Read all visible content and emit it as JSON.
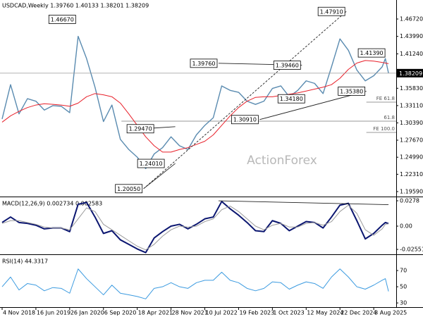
{
  "chart_data": {
    "type": "line",
    "x": [
      "2018-11-04",
      "2018-12-30",
      "2019-02-24",
      "2019-04-21",
      "2019-06-16",
      "2019-08-11",
      "2019-10-06",
      "2019-12-01",
      "2020-01-26",
      "2020-03-22",
      "2020-05-17",
      "2020-07-12",
      "2020-09-06",
      "2020-11-01",
      "2020-12-27",
      "2021-02-21",
      "2021-04-18",
      "2021-06-13",
      "2021-08-08",
      "2021-10-03",
      "2021-11-28",
      "2022-01-23",
      "2022-03-20",
      "2022-05-15",
      "2022-07-10",
      "2022-09-04",
      "2022-10-30",
      "2022-12-25",
      "2023-02-19",
      "2023-04-16",
      "2023-06-11",
      "2023-08-06",
      "2023-10-01",
      "2023-11-26",
      "2024-01-21",
      "2024-03-17",
      "2024-05-12",
      "2024-07-07",
      "2024-09-01",
      "2024-10-27",
      "2024-12-22",
      "2025-02-16",
      "2025-04-13",
      "2025-06-08",
      "2025-08-03",
      "2025-09-28",
      "2025-10-19",
      "2025-11-09"
    ],
    "xlim": [
      "2018-10-21",
      "2025-12-30"
    ],
    "xticks": [
      {
        "value": "2018-11-04",
        "label": "4 Nov 2018"
      },
      {
        "value": "2019-06-16",
        "label": "16 Jun 2019"
      },
      {
        "value": "2020-01-26",
        "label": "26 Jan 2020"
      },
      {
        "value": "2020-09-06",
        "label": "6 Sep 2020"
      },
      {
        "value": "2021-04-18",
        "label": "18 Apr 2021"
      },
      {
        "value": "2021-11-28",
        "label": "28 Nov 2021"
      },
      {
        "value": "2022-07-10",
        "label": "10 Jul 2022"
      },
      {
        "value": "2023-02-19",
        "label": "19 Feb 2023"
      },
      {
        "value": "2023-10-01",
        "label": "1 Oct 2023"
      },
      {
        "value": "2024-05-12",
        "label": "12 May 2024"
      },
      {
        "value": "2024-12-22",
        "label": "22 Dec 2024"
      },
      {
        "value": "2025-08-03",
        "label": "3 Aug 2025"
      }
    ],
    "watermark": "ActionForex",
    "panels": [
      {
        "type": "line",
        "header": "USDCAD,Weekly  1.39760 1.40133 1.38201 1.38209",
        "ylim": [
          1.1892,
          1.4971
        ],
        "yticks": [
          {
            "value": 1.4672,
            "label": "1.46720"
          },
          {
            "value": 1.4399,
            "label": "1.43990"
          },
          {
            "value": 1.4124,
            "label": "1.41240"
          },
          {
            "value": 1.3583,
            "label": "1.35830"
          },
          {
            "value": 1.3311,
            "label": "1.33110"
          },
          {
            "value": 1.3039,
            "label": "1.30390"
          },
          {
            "value": 1.2767,
            "label": "1.27670"
          },
          {
            "value": 1.2499,
            "label": "1.24990"
          },
          {
            "value": 1.2231,
            "label": "1.22310"
          },
          {
            "value": 1.1959,
            "label": "1.19590"
          }
        ],
        "series": [
          {
            "color": "#5a8bb0",
            "width": 1.4,
            "values": [
              1.31,
              1.364,
              1.318,
              1.342,
              1.338,
              1.324,
              1.331,
              1.33,
              1.32,
              1.44,
              1.405,
              1.36,
              1.306,
              1.332,
              1.278,
              1.262,
              1.25,
              1.232,
              1.255,
              1.265,
              1.282,
              1.268,
              1.262,
              1.285,
              1.3,
              1.312,
              1.362,
              1.355,
              1.352,
              1.338,
              1.333,
              1.338,
              1.358,
              1.362,
              1.345,
              1.355,
              1.37,
              1.366,
              1.35,
              1.392,
              1.436,
              1.418,
              1.387,
              1.37,
              1.378,
              1.392,
              1.405,
              1.38209
            ]
          },
          {
            "color": "#e8202a",
            "width": 1,
            "values": [
              1.305,
              1.315,
              1.322,
              1.328,
              1.332,
              1.334,
              1.333,
              1.332,
              1.33,
              1.335,
              1.345,
              1.35,
              1.348,
              1.345,
              1.335,
              1.318,
              1.3,
              1.282,
              1.268,
              1.258,
              1.258,
              1.262,
              1.265,
              1.27,
              1.275,
              1.285,
              1.3,
              1.315,
              1.328,
              1.338,
              1.344,
              1.345,
              1.345,
              1.347,
              1.349,
              1.351,
              1.354,
              1.357,
              1.36,
              1.364,
              1.374,
              1.388,
              1.398,
              1.402,
              1.401,
              1.399,
              1.398,
              1.397
            ]
          }
        ],
        "annotations": [
          {
            "label": "1.46670",
            "x": "2020-03-15",
            "value": 1.4667
          },
          {
            "label": "1.20050",
            "x": "2021-05-30",
            "value": 1.2005
          },
          {
            "label": "1.29470",
            "x": "2021-08-15",
            "value": 1.2947
          },
          {
            "label": "1.24010",
            "x": "2021-10-24",
            "value": 1.2401
          },
          {
            "label": "1.39760",
            "x": "2022-10-09",
            "value": 1.3976
          },
          {
            "label": "1.30910",
            "x": "2023-07-09",
            "value": 1.3091
          },
          {
            "label": "1.39460",
            "x": "2024-04-14",
            "value": 1.3946
          },
          {
            "label": "1.34180",
            "x": "2024-05-12",
            "value": 1.3418
          },
          {
            "label": "1.47910",
            "x": "2025-02-02",
            "value": 1.4791
          },
          {
            "label": "1.35380",
            "x": "2025-06-15",
            "value": 1.3538
          },
          {
            "label": "1.41390",
            "x": "2025-10-26",
            "value": 1.4139
          }
        ],
        "levels": [
          {
            "label": "FE 61.8",
            "x": "2025-06-15",
            "value": 1.3365
          },
          {
            "label": "61.8",
            "x": "2021-01-03",
            "value": 1.3066
          },
          {
            "label": "FE 100.0",
            "x": "2025-06-15",
            "value": 1.2889
          }
        ],
        "trendlines": [
          {
            "x": [
              "2021-05-30",
              "2025-02-02"
            ],
            "values": [
              1.2005,
              1.4791
            ],
            "dashed": true
          },
          {
            "x": [
              "2022-10-09",
              "2024-04-14"
            ],
            "values": [
              1.3976,
              1.3946
            ],
            "dashed": false
          },
          {
            "x": [
              "2023-07-09",
              "2025-06-15"
            ],
            "values": [
              1.3091,
              1.3538
            ],
            "dashed": false
          },
          {
            "x": [
              "2021-05-30",
              "2021-12-26"
            ],
            "values": [
              1.2005,
              1.2401
            ],
            "dashed": false
          },
          {
            "x": [
              "2021-05-30",
              "2021-12-26"
            ],
            "values": [
              1.2947,
              1.298
            ],
            "dashed": false
          }
        ]
      },
      {
        "type": "line",
        "header": "MACD(12,26,9) 0.002734 0.002583",
        "ylim": [
          -0.0301,
          0.0309
        ],
        "yticks": [
          0.0278,
          {
            "value": 0,
            "label": "0.00"
          },
          -0.025511
        ],
        "series": [
          {
            "color": "#0b1670",
            "width": 2,
            "values": [
              0.004,
              0.01,
              0.004,
              0.003,
              0.001,
              -0.003,
              -0.002,
              -0.002,
              -0.006,
              0.024,
              0.026,
              0.01,
              -0.008,
              -0.005,
              -0.015,
              -0.02,
              -0.025,
              -0.029,
              -0.013,
              -0.006,
              0.0,
              0.002,
              -0.003,
              0.002,
              0.008,
              0.01,
              0.027,
              0.019,
              0.012,
              0.004,
              -0.005,
              -0.006,
              0.006,
              0.003,
              -0.005,
              0.0,
              0.005,
              0.004,
              -0.002,
              0.01,
              0.023,
              0.025,
              0.006,
              -0.014,
              -0.008,
              0.001,
              0.004,
              0.002734
            ]
          },
          {
            "color": "#9a9a9a",
            "width": 1,
            "values": [
              0.003,
              0.006,
              0.006,
              0.004,
              0.002,
              -0.001,
              -0.002,
              -0.002,
              -0.004,
              0.008,
              0.02,
              0.016,
              0.002,
              -0.004,
              -0.01,
              -0.016,
              -0.022,
              -0.026,
              -0.02,
              -0.011,
              -0.004,
              0.0,
              -0.001,
              0.0,
              0.005,
              0.008,
              0.018,
              0.022,
              0.016,
              0.008,
              0.0,
              -0.004,
              0.001,
              0.003,
              -0.001,
              -0.001,
              0.003,
              0.004,
              0.001,
              0.005,
              0.016,
              0.023,
              0.014,
              -0.004,
              -0.01,
              -0.003,
              0.002,
              0.002583
            ]
          }
        ],
        "trendlines": [
          {
            "x": [
              "2022-10-09",
              "2025-11-09"
            ],
            "values": [
              0.0278,
              0.0235
            ],
            "dashed": false
          }
        ]
      },
      {
        "type": "line",
        "header": "RSI(14) 44.3317",
        "ylim": [
          25.7,
          88.3
        ],
        "yticks": [
          70,
          50,
          30
        ],
        "series": [
          {
            "color": "#3c9be0",
            "width": 1,
            "values": [
              50,
              62,
              46,
              54,
              52,
              45,
              49,
              48,
              42,
              72,
              60,
              50,
              40,
              52,
              42,
              40,
              38,
              35,
              48,
              50,
              55,
              50,
              48,
              55,
              58,
              58,
              68,
              58,
              55,
              48,
              45,
              48,
              56,
              55,
              47,
              52,
              56,
              54,
              48,
              62,
              72,
              62,
              50,
              47,
              52,
              58,
              60,
              44.3317
            ]
          }
        ]
      }
    ]
  }
}
